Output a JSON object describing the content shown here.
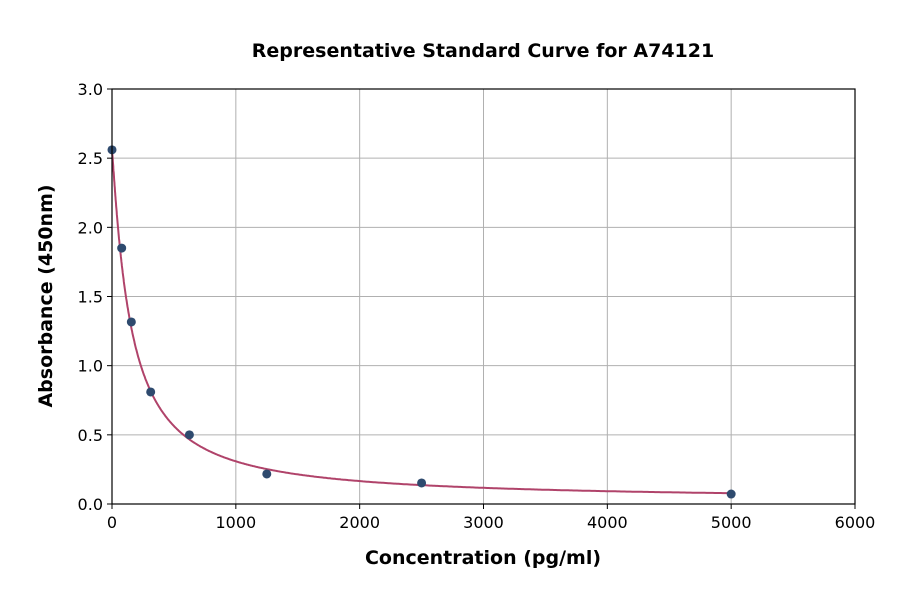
{
  "chart_data": {
    "type": "scatter",
    "title": "Representative Standard Curve for A74121",
    "xlabel": "Concentration (pg/ml)",
    "ylabel": "Absorbance (450nm)",
    "xlim": [
      0,
      6000
    ],
    "ylim": [
      0,
      3.0
    ],
    "xticks": [
      "0",
      "1000",
      "2000",
      "3000",
      "4000",
      "5000",
      "6000"
    ],
    "yticks": [
      "0.0",
      "0.5",
      "1.0",
      "1.5",
      "2.0",
      "2.5",
      "3.0"
    ],
    "grid": true,
    "points": [
      {
        "x": 0,
        "y": 2.56
      },
      {
        "x": 78.125,
        "y": 1.85
      },
      {
        "x": 156.25,
        "y": 1.316
      },
      {
        "x": 312.5,
        "y": 0.81
      },
      {
        "x": 625,
        "y": 0.5
      },
      {
        "x": 1250,
        "y": 0.217
      },
      {
        "x": 2500,
        "y": 0.152
      },
      {
        "x": 5000,
        "y": 0.072
      }
    ],
    "point_color": "#2e4a6e",
    "curve_color": "#b0436a"
  }
}
